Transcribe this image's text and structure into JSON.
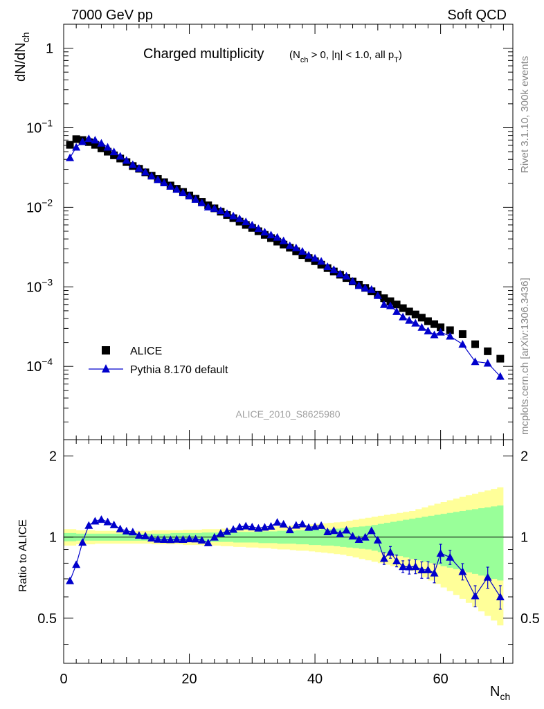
{
  "header": {
    "energy": "7000 GeV pp",
    "category": "Soft QCD"
  },
  "side": {
    "rivet": "Rivet 3.1.10,  300k events",
    "source": "mcplots.cern.ch [arXiv:1306.3436]"
  },
  "chart_data": [
    {
      "type": "scatter",
      "yscale": "log",
      "title_main": "Charged multiplicity",
      "title_cond": "(N_ch > 0, |η| < 1.0, all p_T)",
      "ylabel": "dN/dN_ch",
      "analysis": "ALICE_2010_S8625980",
      "xlim": [
        0,
        71.5
      ],
      "ylim": [
        1.2e-05,
        2
      ],
      "ytick_labels": [
        {
          "value": 1,
          "mant": "1",
          "exp": ""
        },
        {
          "value": 0.1,
          "mant": "10",
          "exp": "−1"
        },
        {
          "value": 0.01,
          "mant": "10",
          "exp": "−2"
        },
        {
          "value": 0.001,
          "mant": "10",
          "exp": "−3"
        },
        {
          "value": 0.0001,
          "mant": "10",
          "exp": "−4"
        }
      ],
      "legend": {
        "data": "ALICE",
        "mc": "Pythia 8.170 default",
        "position": "bottom-left"
      },
      "series": [
        {
          "name": "ALICE",
          "marker": "square",
          "color": "#000000",
          "x": [
            1,
            2,
            3,
            4,
            5,
            6,
            7,
            8,
            9,
            10,
            11,
            12,
            13,
            14,
            15,
            16,
            17,
            18,
            19,
            20,
            21,
            22,
            23,
            24,
            25,
            26,
            27,
            28,
            29,
            30,
            31,
            32,
            33,
            34,
            35,
            36,
            37,
            38,
            39,
            40,
            41,
            42,
            43,
            44,
            45,
            46,
            47,
            48,
            49,
            50,
            51,
            52,
            53,
            54,
            55,
            56,
            57,
            58,
            59,
            60,
            61.5,
            63.5,
            65.5,
            67.5,
            69.5
          ],
          "y": [
            0.061,
            0.072,
            0.07,
            0.066,
            0.061,
            0.055,
            0.05,
            0.045,
            0.041,
            0.037,
            0.033,
            0.0305,
            0.0275,
            0.025,
            0.0227,
            0.0207,
            0.0188,
            0.0171,
            0.0156,
            0.0141,
            0.0128,
            0.0117,
            0.0106,
            0.0097,
            0.0088,
            0.008,
            0.0073,
            0.0066,
            0.006,
            0.0055,
            0.005,
            0.0045,
            0.0041,
            0.0037,
            0.0034,
            0.0031,
            0.0028,
            0.0025,
            0.0023,
            0.0021,
            0.0019,
            0.00172,
            0.00156,
            0.00142,
            0.00129,
            0.00117,
            0.00106,
            0.00097,
            0.00088,
            0.0008,
            0.00072,
            0.00066,
            0.0006,
            0.00054,
            0.00049,
            0.00045,
            0.00041,
            0.00037,
            0.00034,
            0.00031,
            0.000285,
            0.000255,
            0.00019,
            0.000155,
            0.000125
          ]
        },
        {
          "name": "Pythia 8.170 default",
          "marker": "triangle",
          "color": "#0000cc",
          "x": [
            1,
            2,
            3,
            4,
            5,
            6,
            7,
            8,
            9,
            10,
            11,
            12,
            13,
            14,
            15,
            16,
            17,
            18,
            19,
            20,
            21,
            22,
            23,
            24,
            25,
            26,
            27,
            28,
            29,
            30,
            31,
            32,
            33,
            34,
            35,
            36,
            37,
            38,
            39,
            40,
            41,
            42,
            43,
            44,
            45,
            46,
            47,
            48,
            49,
            50,
            51,
            52,
            53,
            54,
            55,
            56,
            57,
            58,
            59,
            60,
            61.5,
            63.5,
            65.5,
            67.5,
            69.5
          ],
          "y": [
            0.042,
            0.057,
            0.067,
            0.073,
            0.07,
            0.064,
            0.057,
            0.05,
            0.044,
            0.039,
            0.0345,
            0.031,
            0.0278,
            0.0248,
            0.0223,
            0.0203,
            0.0184,
            0.0168,
            0.0153,
            0.0139,
            0.0126,
            0.0114,
            0.0101,
            0.0097,
            0.0091,
            0.0084,
            0.0078,
            0.0072,
            0.0066,
            0.006,
            0.0054,
            0.0049,
            0.0045,
            0.0042,
            0.0038,
            0.0033,
            0.0031,
            0.0028,
            0.0025,
            0.0023,
            0.0021,
            0.0018,
            0.00165,
            0.00146,
            0.00137,
            0.00118,
            0.00104,
            0.00097,
            0.00093,
            0.00078,
            0.0006,
            0.00058,
            0.00049,
            0.00042,
            0.00038,
            0.00035,
            0.00031,
            0.00028,
            0.00025,
            0.00027,
            0.00024,
            0.00019,
            0.000115,
            0.00011,
            7.5e-05
          ],
          "yerr_ratio": [
            0,
            0,
            0,
            0,
            0,
            0,
            0,
            0,
            0,
            0,
            0,
            0,
            0,
            0,
            0,
            0,
            0,
            0,
            0,
            0,
            0,
            0,
            0,
            0,
            0,
            0,
            0,
            0,
            0,
            0,
            0,
            0,
            0,
            0,
            0,
            0,
            0,
            0,
            0,
            0,
            0,
            0,
            0,
            0,
            0,
            0,
            0,
            0,
            0,
            0,
            0.05,
            0.05,
            0.05,
            0.05,
            0.06,
            0.06,
            0.07,
            0.07,
            0.08,
            0.08,
            0.06,
            0.07,
            0.09,
            0.09,
            0.1
          ]
        }
      ]
    },
    {
      "type": "scatter",
      "ylabel": "Ratio to ALICE",
      "xlabel": "N_ch",
      "xlim": [
        0,
        71.5
      ],
      "ylim": [
        0.34,
        2.3
      ],
      "xticks": [
        0,
        20,
        40,
        60
      ],
      "yticks": [
        0.5,
        1,
        2
      ],
      "ytick_labels": [
        "0.5",
        "1",
        "2"
      ],
      "band_x": [
        0,
        1,
        2,
        3,
        4,
        5,
        6,
        7,
        8,
        9,
        10,
        11,
        12,
        13,
        14,
        15,
        16,
        17,
        18,
        19,
        20,
        21,
        22,
        23,
        24,
        25,
        26,
        27,
        28,
        29,
        30,
        31,
        32,
        33,
        34,
        35,
        36,
        37,
        38,
        39,
        40,
        41,
        42,
        43,
        44,
        45,
        46,
        47,
        48,
        49,
        50,
        51,
        52,
        53,
        54,
        55,
        56,
        57,
        58,
        59,
        60,
        61,
        62,
        63,
        64,
        65,
        66,
        67,
        68,
        69,
        70
      ],
      "band_inner": [
        0.035,
        0.035,
        0.03,
        0.03,
        0.03,
        0.03,
        0.03,
        0.03,
        0.03,
        0.03,
        0.03,
        0.03,
        0.03,
        0.03,
        0.03,
        0.03,
        0.03,
        0.035,
        0.035,
        0.035,
        0.035,
        0.035,
        0.04,
        0.04,
        0.04,
        0.04,
        0.04,
        0.045,
        0.045,
        0.045,
        0.045,
        0.05,
        0.05,
        0.05,
        0.055,
        0.055,
        0.055,
        0.06,
        0.06,
        0.065,
        0.065,
        0.07,
        0.07,
        0.075,
        0.08,
        0.085,
        0.09,
        0.095,
        0.1,
        0.11,
        0.12,
        0.13,
        0.14,
        0.15,
        0.16,
        0.17,
        0.18,
        0.19,
        0.2,
        0.21,
        0.22,
        0.23,
        0.24,
        0.25,
        0.26,
        0.27,
        0.28,
        0.29,
        0.3,
        0.31,
        0.32
      ],
      "band_outer": [
        0.07,
        0.07,
        0.06,
        0.06,
        0.06,
        0.055,
        0.055,
        0.055,
        0.055,
        0.055,
        0.055,
        0.055,
        0.055,
        0.055,
        0.06,
        0.06,
        0.06,
        0.06,
        0.06,
        0.065,
        0.065,
        0.065,
        0.07,
        0.07,
        0.07,
        0.075,
        0.075,
        0.08,
        0.08,
        0.085,
        0.085,
        0.09,
        0.09,
        0.095,
        0.1,
        0.1,
        0.105,
        0.11,
        0.11,
        0.115,
        0.12,
        0.125,
        0.13,
        0.135,
        0.14,
        0.15,
        0.16,
        0.17,
        0.18,
        0.19,
        0.2,
        0.21,
        0.22,
        0.23,
        0.24,
        0.25,
        0.27,
        0.29,
        0.31,
        0.33,
        0.35,
        0.37,
        0.39,
        0.41,
        0.43,
        0.45,
        0.47,
        0.49,
        0.51,
        0.53,
        0.55
      ],
      "band_inner_color": "#99ff99",
      "band_outer_color": "#ffff99"
    }
  ]
}
